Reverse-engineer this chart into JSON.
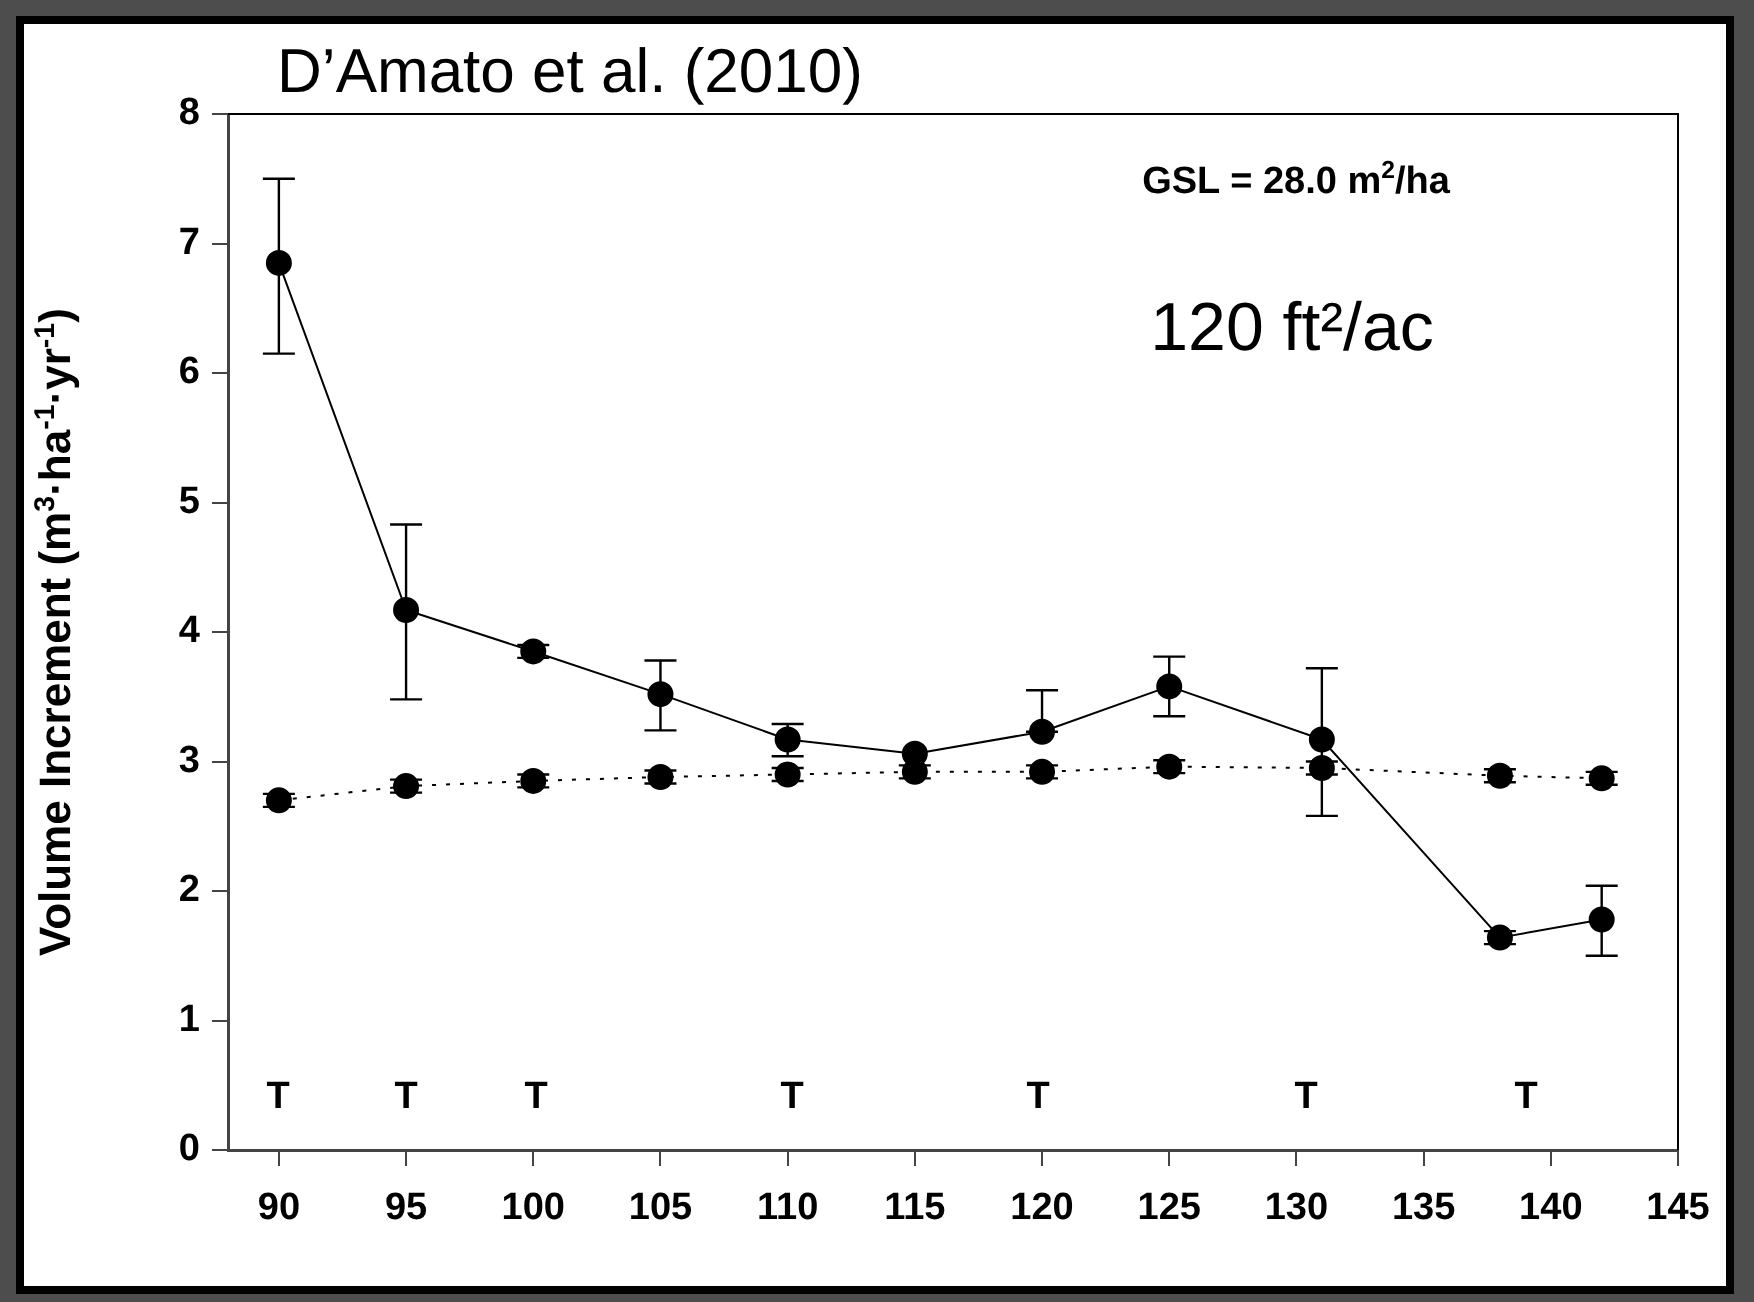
{
  "chart_data": {
    "type": "line",
    "title": "D’Amato et al. (2010)",
    "ylabel": "Volume Increment (m$^{3}$·ha$^{-1}$·yr$^{-1}$)",
    "xlim": [
      88,
      145
    ],
    "xticks": [
      90,
      95,
      100,
      105,
      110,
      115,
      120,
      125,
      130,
      135,
      140,
      145
    ],
    "ylim": [
      0,
      8
    ],
    "yticks": [
      0,
      1,
      2,
      3,
      4,
      5,
      6,
      7,
      8
    ],
    "marker": "circle",
    "grid": false,
    "legend": false,
    "series": [
      {
        "color": "#000000",
        "line_style": "solid",
        "x": [
          90,
          95,
          100,
          105,
          110,
          115,
          120,
          125,
          131,
          138,
          142
        ],
        "values": [
          6.85,
          4.17,
          3.85,
          3.52,
          3.17,
          3.06,
          3.23,
          3.58,
          3.17,
          1.64,
          1.78
        ],
        "errors": [
          [
            6.15,
            7.5
          ],
          [
            3.48,
            4.83
          ],
          [
            3.8,
            3.9
          ],
          [
            3.24,
            3.78
          ],
          [
            3.04,
            3.29
          ],
          null,
          [
            3.23,
            3.55
          ],
          [
            3.35,
            3.81
          ],
          [
            2.58,
            3.72
          ],
          [
            1.59,
            1.69
          ],
          [
            1.5,
            2.04
          ]
        ]
      },
      {
        "color": "#000000",
        "line_style": "dotted",
        "x": [
          90,
          95,
          100,
          105,
          110,
          115,
          120,
          125,
          131,
          138,
          142
        ],
        "values": [
          2.7,
          2.81,
          2.85,
          2.88,
          2.9,
          2.92,
          2.92,
          2.96,
          2.95,
          2.89,
          2.87
        ],
        "errors": [
          0.05,
          0.05,
          0.05,
          0.05,
          0.05,
          0.05,
          0.05,
          0.05,
          0.05,
          0.05,
          0.05
        ]
      }
    ],
    "annotations": [
      "GSL = 28.0 m$^{2}$/ha",
      "120 ft²/ac",
      "T",
      "T",
      "T",
      "T",
      "T",
      "T",
      "T"
    ]
  }
}
